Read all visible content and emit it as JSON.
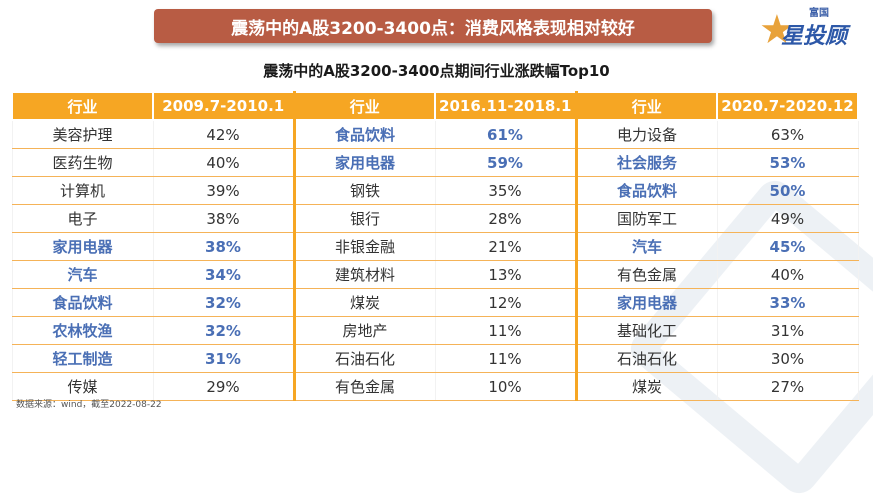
{
  "banner_title": "震荡中的A股3200-3400点：消费风格表现相对较好",
  "logo": {
    "small": "富国",
    "big": "星投顾",
    "icon": "star-icon",
    "color": "#2d58a8"
  },
  "subtitle": "震荡中的A股3200-3400点期间行业涨跌幅Top10",
  "table": {
    "headers": [
      "行业",
      "2009.7-2010.1",
      "行业",
      "2016.11-2018.1",
      "行业",
      "2020.7-2020.12"
    ],
    "rows": [
      [
        "美容护理",
        "42%",
        "食品饮料",
        "61%",
        "电力设备",
        "63%"
      ],
      [
        "医药生物",
        "40%",
        "家用电器",
        "59%",
        "社会服务",
        "53%"
      ],
      [
        "计算机",
        "39%",
        "钢铁",
        "35%",
        "食品饮料",
        "50%"
      ],
      [
        "电子",
        "38%",
        "银行",
        "28%",
        "国防军工",
        "49%"
      ],
      [
        "家用电器",
        "38%",
        "非银金融",
        "21%",
        "汽车",
        "45%"
      ],
      [
        "汽车",
        "34%",
        "建筑材料",
        "13%",
        "有色金属",
        "40%"
      ],
      [
        "食品饮料",
        "32%",
        "煤炭",
        "12%",
        "家用电器",
        "33%"
      ],
      [
        "农林牧渔",
        "32%",
        "房地产",
        "11%",
        "基础化工",
        "31%"
      ],
      [
        "轻工制造",
        "31%",
        "石油石化",
        "11%",
        "石油石化",
        "30%"
      ],
      [
        "传媒",
        "29%",
        "有色金属",
        "10%",
        "煤炭",
        "27%"
      ]
    ],
    "highlighted": [
      [
        false,
        false,
        true,
        true,
        false,
        false
      ],
      [
        false,
        false,
        true,
        true,
        true,
        true
      ],
      [
        false,
        false,
        false,
        false,
        true,
        true
      ],
      [
        false,
        false,
        false,
        false,
        false,
        false
      ],
      [
        true,
        true,
        false,
        false,
        true,
        true
      ],
      [
        true,
        true,
        false,
        false,
        false,
        false
      ],
      [
        true,
        true,
        false,
        false,
        true,
        true
      ],
      [
        true,
        true,
        false,
        false,
        false,
        false
      ],
      [
        true,
        true,
        false,
        false,
        false,
        false
      ],
      [
        false,
        false,
        false,
        false,
        false,
        false
      ]
    ],
    "colors": {
      "header_bg": "#f6a623",
      "highlight": "#4a6fb5",
      "banner": "#b85c44"
    }
  },
  "source": "数据来源：wind，截至2022-08-22"
}
